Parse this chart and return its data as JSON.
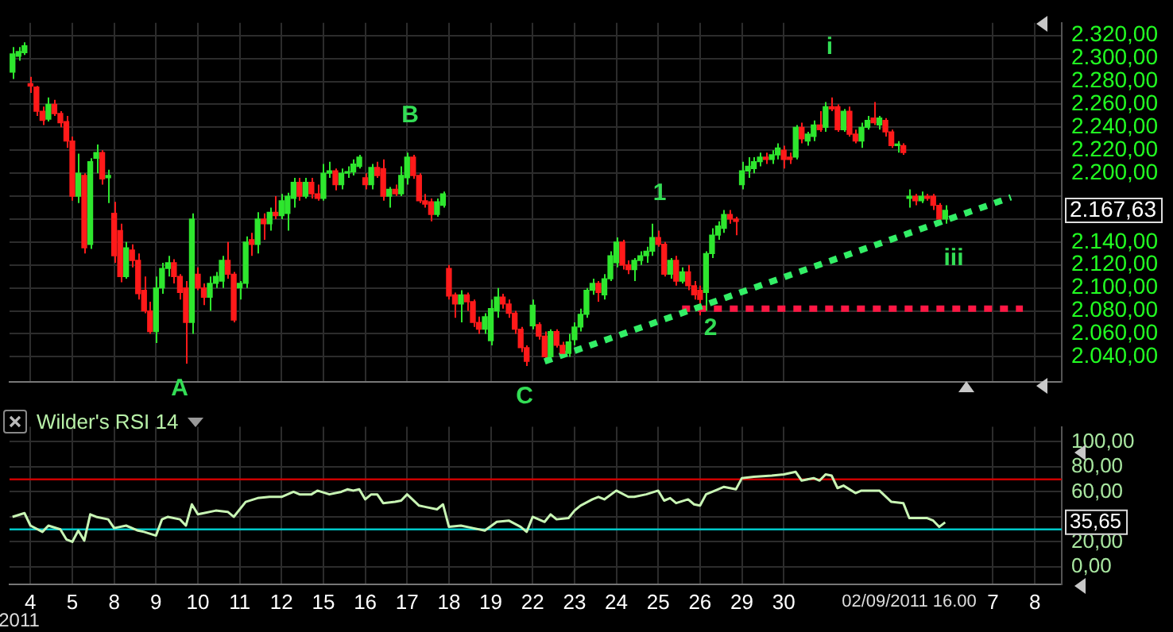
{
  "chart_data": [
    {
      "type": "candlestick",
      "grid": true,
      "tick_labels": "y",
      "categories": [
        null,
        null,
        null,
        "4",
        null,
        null,
        null,
        null,
        null,
        null,
        "5",
        null,
        null,
        null,
        null,
        null,
        null,
        "8",
        null,
        null,
        null,
        null,
        null,
        null,
        "9",
        null,
        null,
        null,
        null,
        null,
        null,
        "10",
        null,
        null,
        null,
        null,
        null,
        null,
        "11",
        null,
        null,
        null,
        null,
        null,
        null,
        "12",
        null,
        null,
        null,
        null,
        null,
        null,
        "15",
        null,
        null,
        null,
        null,
        null,
        null,
        "16",
        null,
        null,
        null,
        null,
        null,
        null,
        "17",
        null,
        null,
        null,
        null,
        null,
        null,
        "18",
        null,
        null,
        null,
        null,
        null,
        null,
        "19",
        null,
        null,
        null,
        null,
        null,
        null,
        "22",
        null,
        null,
        null,
        null,
        null,
        null,
        "23",
        null,
        null,
        null,
        null,
        null,
        null,
        "24",
        null,
        null,
        null,
        null,
        null,
        null,
        "25",
        null,
        null,
        null,
        null,
        null,
        null,
        "26",
        null,
        null,
        null,
        null,
        null,
        null,
        "29",
        null,
        null,
        null,
        null,
        null,
        null,
        "30",
        null,
        null,
        null,
        null,
        null,
        null,
        null,
        null,
        null,
        null,
        null,
        null,
        null,
        null,
        null,
        null,
        null,
        null,
        null,
        null,
        null,
        null,
        null,
        null,
        null,
        null,
        null,
        null,
        null,
        null,
        null,
        null,
        null,
        null,
        "7",
        null,
        null,
        null,
        null,
        null,
        null,
        "8",
        null,
        null,
        null,
        null
      ],
      "ohlc": [
        [
          2288,
          2310,
          2282,
          2304
        ],
        [
          2302,
          2310,
          2298,
          2306
        ],
        [
          2305,
          2314,
          2303,
          2311
        ],
        [
          2278,
          2284,
          2270,
          2276
        ],
        [
          2275,
          2276,
          2250,
          2254
        ],
        [
          2254,
          2258,
          2242,
          2246
        ],
        [
          2247,
          2266,
          2245,
          2260
        ],
        [
          2260,
          2264,
          2250,
          2252
        ],
        [
          2252,
          2254,
          2240,
          2244
        ],
        [
          2245,
          2250,
          2222,
          2228
        ],
        [
          2228,
          2232,
          2176,
          2180
        ],
        [
          2180,
          2217,
          2174,
          2200
        ],
        [
          2198,
          2200,
          2130,
          2135
        ],
        [
          2138,
          2213,
          2134,
          2210
        ],
        [
          2213,
          2225,
          2200,
          2218
        ],
        [
          2218,
          2220,
          2190,
          2195
        ],
        [
          2196,
          2203,
          2174,
          2198
        ],
        [
          2165,
          2175,
          2122,
          2128
        ],
        [
          2150,
          2156,
          2105,
          2110
        ],
        [
          2110,
          2140,
          2108,
          2135
        ],
        [
          2133,
          2138,
          2118,
          2124
        ],
        [
          2124,
          2130,
          2090,
          2095
        ],
        [
          2098,
          2110,
          2078,
          2080
        ],
        [
          2080,
          2088,
          2060,
          2062
        ],
        [
          2062,
          2110,
          2052,
          2100
        ],
        [
          2100,
          2122,
          2095,
          2117
        ],
        [
          2117,
          2128,
          2110,
          2122
        ],
        [
          2122,
          2125,
          2104,
          2110
        ],
        [
          2110,
          2112,
          2090,
          2096
        ],
        [
          2100,
          2106,
          2034,
          2070
        ],
        [
          2070,
          2165,
          2060,
          2160
        ],
        [
          2112,
          2118,
          2098,
          2100
        ],
        [
          2100,
          2104,
          2085,
          2092
        ],
        [
          2092,
          2110,
          2080,
          2104
        ],
        [
          2104,
          2114,
          2100,
          2110
        ],
        [
          2106,
          2128,
          2100,
          2124
        ],
        [
          2124,
          2140,
          2108,
          2112
        ],
        [
          2112,
          2114,
          2070,
          2072
        ],
        [
          2100,
          2106,
          2090,
          2104
        ],
        [
          2104,
          2145,
          2100,
          2140
        ],
        [
          2142,
          2148,
          2128,
          2138
        ],
        [
          2138,
          2166,
          2130,
          2160
        ],
        [
          2160,
          2165,
          2142,
          2156
        ],
        [
          2156,
          2170,
          2150,
          2166
        ],
        [
          2166,
          2180,
          2160,
          2163
        ],
        [
          2163,
          2182,
          2160,
          2176
        ],
        [
          2165,
          2183,
          2150,
          2180
        ],
        [
          2178,
          2196,
          2170,
          2192
        ],
        [
          2192,
          2196,
          2176,
          2180
        ],
        [
          2180,
          2196,
          2178,
          2192
        ],
        [
          2192,
          2196,
          2178,
          2182
        ],
        [
          2182,
          2190,
          2176,
          2178
        ],
        [
          2178,
          2208,
          2176,
          2200
        ],
        [
          2200,
          2210,
          2196,
          2202
        ],
        [
          2202,
          2204,
          2185,
          2190
        ],
        [
          2190,
          2204,
          2186,
          2200
        ],
        [
          2200,
          2206,
          2196,
          2201
        ],
        [
          2201,
          2212,
          2198,
          2208
        ],
        [
          2206,
          2216,
          2204,
          2214
        ],
        [
          2196,
          2200,
          2186,
          2190
        ],
        [
          2190,
          2208,
          2186,
          2205
        ],
        [
          2205,
          2210,
          2196,
          2198
        ],
        [
          2204,
          2212,
          2176,
          2180
        ],
        [
          2180,
          2188,
          2170,
          2186
        ],
        [
          2186,
          2190,
          2180,
          2182
        ],
        [
          2182,
          2206,
          2180,
          2198
        ],
        [
          2196,
          2218,
          2190,
          2214
        ],
        [
          2214,
          2216,
          2195,
          2198
        ],
        [
          2198,
          2200,
          2174,
          2176
        ],
        [
          2176,
          2182,
          2170,
          2173
        ],
        [
          2175,
          2178,
          2158,
          2164
        ],
        [
          2164,
          2178,
          2162,
          2175
        ],
        [
          2172,
          2184,
          2170,
          2182
        ],
        [
          2117,
          2120,
          2090,
          2093
        ],
        [
          2094,
          2096,
          2074,
          2086
        ],
        [
          2086,
          2098,
          2070,
          2094
        ],
        [
          2094,
          2096,
          2080,
          2088
        ],
        [
          2088,
          2090,
          2066,
          2070
        ],
        [
          2070,
          2075,
          2060,
          2064
        ],
        [
          2064,
          2078,
          2060,
          2075
        ],
        [
          2054,
          2090,
          2050,
          2082
        ],
        [
          2080,
          2100,
          2074,
          2092
        ],
        [
          2092,
          2095,
          2082,
          2086
        ],
        [
          2086,
          2090,
          2074,
          2078
        ],
        [
          2078,
          2080,
          2060,
          2064
        ],
        [
          2064,
          2066,
          2044,
          2048
        ],
        [
          2048,
          2050,
          2032,
          2036
        ],
        [
          2067,
          2090,
          2064,
          2085
        ],
        [
          2068,
          2070,
          2055,
          2058
        ],
        [
          2058,
          2062,
          2036,
          2040
        ],
        [
          2040,
          2064,
          2038,
          2062
        ],
        [
          2062,
          2064,
          2048,
          2050
        ],
        [
          2050,
          2053,
          2040,
          2043
        ],
        [
          2043,
          2060,
          2040,
          2053
        ],
        [
          2055,
          2070,
          2050,
          2066
        ],
        [
          2066,
          2082,
          2062,
          2077
        ],
        [
          2077,
          2100,
          2074,
          2098
        ],
        [
          2098,
          2108,
          2094,
          2104
        ],
        [
          2104,
          2106,
          2088,
          2096
        ],
        [
          2094,
          2112,
          2090,
          2108
        ],
        [
          2108,
          2132,
          2106,
          2128
        ],
        [
          2122,
          2144,
          2118,
          2140
        ],
        [
          2140,
          2142,
          2116,
          2120
        ],
        [
          2120,
          2124,
          2112,
          2116
        ],
        [
          2116,
          2126,
          2106,
          2124
        ],
        [
          2124,
          2132,
          2120,
          2128
        ],
        [
          2128,
          2136,
          2122,
          2132
        ],
        [
          2132,
          2156,
          2128,
          2144
        ],
        [
          2144,
          2150,
          2136,
          2138
        ],
        [
          2138,
          2140,
          2110,
          2112
        ],
        [
          2112,
          2126,
          2108,
          2124
        ],
        [
          2124,
          2128,
          2102,
          2106
        ],
        [
          2106,
          2118,
          2104,
          2114
        ],
        [
          2114,
          2120,
          2098,
          2102
        ],
        [
          2102,
          2106,
          2090,
          2094
        ],
        [
          2098,
          2102,
          2076,
          2090
        ],
        [
          2096,
          2132,
          2080,
          2130
        ],
        [
          2130,
          2152,
          2126,
          2146
        ],
        [
          2146,
          2158,
          2142,
          2154
        ],
        [
          2152,
          2168,
          2148,
          2164
        ],
        [
          2164,
          2168,
          2156,
          2160
        ],
        [
          2160,
          2162,
          2146,
          2158
        ],
        [
          2190,
          2210,
          2186,
          2202
        ],
        [
          2202,
          2214,
          2196,
          2206
        ],
        [
          2204,
          2214,
          2200,
          2210
        ],
        [
          2210,
          2218,
          2206,
          2214
        ],
        [
          2214,
          2218,
          2208,
          2212
        ],
        [
          2212,
          2220,
          2208,
          2216
        ],
        [
          2216,
          2226,
          2212,
          2222
        ],
        [
          2220,
          2224,
          2204,
          2212
        ],
        [
          2214,
          2218,
          2208,
          2212
        ],
        [
          2214,
          2242,
          2212,
          2240
        ],
        [
          2240,
          2244,
          2226,
          2230
        ],
        [
          2228,
          2236,
          2224,
          2234
        ],
        [
          2232,
          2246,
          2228,
          2242
        ],
        [
          2242,
          2254,
          2236,
          2238
        ],
        [
          2240,
          2262,
          2236,
          2258
        ],
        [
          2258,
          2266,
          2254,
          2256
        ],
        [
          2258,
          2260,
          2236,
          2238
        ],
        [
          2238,
          2256,
          2236,
          2254
        ],
        [
          2254,
          2258,
          2232,
          2234
        ],
        [
          2234,
          2238,
          2226,
          2228
        ],
        [
          2228,
          2244,
          2222,
          2240
        ],
        [
          2240,
          2250,
          2238,
          2246
        ],
        [
          2248,
          2262,
          2242,
          2244
        ],
        [
          2242,
          2250,
          2238,
          2248
        ],
        [
          2246,
          2248,
          2232,
          2236
        ],
        [
          2236,
          2238,
          2222,
          2224
        ],
        [
          2224,
          2228,
          2218,
          2225
        ],
        [
          2224,
          2226,
          2216,
          2218
        ],
        [
          2178,
          2186,
          2170,
          2180
        ],
        [
          2180,
          2182,
          2172,
          2176
        ],
        [
          2176,
          2184,
          2174,
          2180
        ],
        [
          2180,
          2182,
          2176,
          2178
        ],
        [
          2180,
          2182,
          2168,
          2172
        ],
        [
          2172,
          2174,
          2158,
          2160
        ],
        [
          2160,
          2172,
          2156,
          2167.63
        ],
        null,
        null,
        null,
        null,
        null,
        null,
        null,
        null,
        null,
        null,
        null,
        null,
        null,
        null,
        null,
        null,
        null,
        null,
        null
      ],
      "series": [
        {
          "type": "line",
          "color": "#33ee66",
          "line_style": "dotted",
          "values": [
            null,
            null,
            null,
            null,
            null,
            null,
            null,
            null,
            null,
            null,
            null,
            null,
            null,
            null,
            null,
            null,
            null,
            null,
            null,
            null,
            null,
            null,
            null,
            null,
            null,
            null,
            null,
            null,
            null,
            null,
            null,
            null,
            null,
            null,
            null,
            null,
            null,
            null,
            null,
            null,
            null,
            null,
            null,
            null,
            null,
            null,
            null,
            null,
            null,
            null,
            null,
            null,
            null,
            null,
            null,
            null,
            null,
            null,
            null,
            null,
            null,
            null,
            null,
            null,
            null,
            null,
            null,
            null,
            null,
            null,
            null,
            null,
            null,
            null,
            null,
            null,
            null,
            null,
            null,
            null,
            null,
            null,
            null,
            null,
            null,
            null,
            null,
            null,
            null,
            2036,
            null,
            null,
            null,
            null,
            null,
            null,
            null,
            null,
            null,
            null,
            null,
            null,
            null,
            null,
            null,
            null,
            null,
            null,
            null,
            null,
            null,
            null,
            null,
            null,
            null,
            null,
            null,
            null,
            null,
            null,
            null,
            null,
            null,
            null,
            null,
            null,
            null,
            null,
            null,
            null,
            null,
            null,
            null,
            null,
            null,
            null,
            null,
            null,
            null,
            null,
            null,
            null,
            null,
            null,
            null,
            null,
            null,
            null,
            null,
            null,
            null,
            null,
            null,
            null,
            null,
            null,
            null,
            null,
            null,
            null,
            null,
            null,
            null,
            null,
            null,
            null,
            null,
            2179,
            null,
            null,
            null,
            null,
            null,
            null,
            null,
            null
          ]
        },
        {
          "type": "line",
          "color": "#ff1744",
          "line_style": "dotted",
          "values": [
            null,
            null,
            null,
            null,
            null,
            null,
            null,
            null,
            null,
            null,
            null,
            null,
            null,
            null,
            null,
            null,
            null,
            null,
            null,
            null,
            null,
            null,
            null,
            null,
            null,
            null,
            null,
            null,
            null,
            null,
            null,
            null,
            null,
            null,
            null,
            null,
            null,
            null,
            null,
            null,
            null,
            null,
            null,
            null,
            null,
            null,
            null,
            null,
            null,
            null,
            null,
            null,
            null,
            null,
            null,
            null,
            null,
            null,
            null,
            null,
            null,
            null,
            null,
            null,
            null,
            null,
            null,
            null,
            null,
            null,
            null,
            null,
            null,
            null,
            null,
            null,
            null,
            null,
            null,
            null,
            null,
            null,
            null,
            null,
            null,
            null,
            null,
            null,
            null,
            null,
            null,
            null,
            null,
            null,
            null,
            null,
            null,
            null,
            null,
            null,
            null,
            null,
            null,
            null,
            null,
            null,
            null,
            null,
            null,
            null,
            null,
            null,
            2082,
            null,
            null,
            null,
            null,
            null,
            null,
            null,
            null,
            null,
            null,
            null,
            null,
            null,
            null,
            null,
            null,
            null,
            null,
            null,
            null,
            null,
            null,
            null,
            null,
            null,
            null,
            null,
            null,
            null,
            null,
            null,
            null,
            null,
            null,
            null,
            null,
            null,
            null,
            null,
            null,
            null,
            null,
            null,
            null,
            null,
            null,
            null,
            null,
            null,
            null,
            null,
            null,
            null,
            null,
            null,
            null,
            2082,
            null,
            null,
            null,
            null,
            null,
            null
          ]
        }
      ],
      "ylim": [
        2018,
        2331
      ],
      "yticks": [
        {
          "value": 2040,
          "label": "2.040,00"
        },
        {
          "value": 2060,
          "label": "2.060,00"
        },
        {
          "value": 2080,
          "label": "2.080,00"
        },
        {
          "value": 2100,
          "label": "2.100,00"
        },
        {
          "value": 2120,
          "label": "2.120,00"
        },
        {
          "value": 2140,
          "label": "2.140,00"
        },
        {
          "value": 2160,
          "label": null
        },
        {
          "value": 2180,
          "label": null
        },
        {
          "value": 2200,
          "label": "2.200,00"
        },
        {
          "value": 2220,
          "label": "2.220,00"
        },
        {
          "value": 2240,
          "label": "2.240,00"
        },
        {
          "value": 2260,
          "label": "2.260,00"
        },
        {
          "value": 2280,
          "label": "2.280,00"
        },
        {
          "value": 2300,
          "label": "2.300,00"
        },
        {
          "value": 2320,
          "label": "2.320,00"
        }
      ],
      "annotations": [
        "A",
        "B",
        "C",
        "1",
        "2",
        "i",
        "iii",
        "2.167,63"
      ]
    },
    {
      "type": "line",
      "title": "Wilder's RSI 14",
      "grid": true,
      "categories": [
        null,
        null,
        null,
        "4",
        null,
        null,
        null,
        null,
        null,
        null,
        "5",
        null,
        null,
        null,
        null,
        null,
        null,
        "8",
        null,
        null,
        null,
        null,
        null,
        null,
        "9",
        null,
        null,
        null,
        null,
        null,
        null,
        "10",
        null,
        null,
        null,
        null,
        null,
        null,
        "11",
        null,
        null,
        null,
        null,
        null,
        null,
        "12",
        null,
        null,
        null,
        null,
        null,
        null,
        "15",
        null,
        null,
        null,
        null,
        null,
        null,
        "16",
        null,
        null,
        null,
        null,
        null,
        null,
        "17",
        null,
        null,
        null,
        null,
        null,
        null,
        "18",
        null,
        null,
        null,
        null,
        null,
        null,
        "19",
        null,
        null,
        null,
        null,
        null,
        null,
        "22",
        null,
        null,
        null,
        null,
        null,
        null,
        "23",
        null,
        null,
        null,
        null,
        null,
        null,
        "24",
        null,
        null,
        null,
        null,
        null,
        null,
        "25",
        null,
        null,
        null,
        null,
        null,
        null,
        "26",
        null,
        null,
        null,
        null,
        null,
        null,
        "29",
        null,
        null,
        null,
        null,
        null,
        null,
        "30",
        null,
        null,
        null,
        null,
        null,
        null,
        null,
        null,
        null,
        null,
        null,
        null,
        null,
        null,
        null,
        null,
        null,
        null,
        null,
        null,
        null,
        null,
        null,
        null,
        null,
        null,
        null,
        null,
        null,
        null,
        null,
        null,
        null,
        null,
        "7",
        null,
        null,
        null,
        null,
        null,
        null,
        "8",
        null,
        null,
        null,
        null
      ],
      "series": [
        {
          "color": "#c8f5b4",
          "values": [
            40,
            null,
            43,
            33,
            null,
            28,
            33,
            null,
            30,
            22,
            20,
            29,
            21,
            42,
            40,
            null,
            38,
            31,
            null,
            33,
            null,
            29,
            28,
            null,
            25,
            38,
            40,
            null,
            38,
            33,
            50,
            42,
            43,
            null,
            45,
            null,
            44,
            40,
            null,
            52,
            null,
            55,
            null,
            56,
            null,
            56,
            null,
            60,
            58,
            null,
            58,
            61,
            null,
            58,
            null,
            60,
            62,
            61,
            62,
            54,
            58,
            58,
            51,
            null,
            52,
            53,
            58,
            null,
            49,
            48,
            null,
            46,
            50,
            32,
            null,
            33,
            null,
            31,
            null,
            29,
            null,
            36,
            null,
            37,
            null,
            32,
            28,
            40,
            null,
            36,
            42,
            38,
            null,
            39,
            45,
            49,
            null,
            54,
            56,
            54,
            null,
            61,
            null,
            56,
            56,
            null,
            58,
            null,
            61,
            53,
            55,
            51,
            null,
            54,
            50,
            49,
            58,
            null,
            62,
            64,
            null,
            62,
            71,
            null,
            72,
            null,
            null,
            73,
            null,
            74,
            null,
            76,
            69,
            null,
            71,
            69,
            74,
            73,
            63,
            65,
            null,
            59,
            61,
            null,
            61,
            61,
            null,
            52,
            null,
            51,
            39,
            null,
            null,
            39,
            37,
            32,
            35.65,
            null,
            null,
            null,
            null,
            null,
            null,
            null,
            null,
            null,
            null,
            null,
            null,
            null,
            null,
            null,
            null,
            null,
            null,
            null
          ]
        }
      ],
      "ylim": [
        -14,
        112
      ],
      "yticks": [
        {
          "value": 0,
          "label": "0,00"
        },
        {
          "value": 20,
          "label": "20,00"
        },
        {
          "value": 40,
          "label": null
        },
        {
          "value": 60,
          "label": "60,00"
        },
        {
          "value": 80,
          "label": "80,00"
        },
        {
          "value": 100,
          "label": "100,00"
        }
      ],
      "ref_lines": [
        {
          "axis": "y",
          "value": 70,
          "color": "#cc0000"
        },
        {
          "axis": "y",
          "value": 30,
          "color": "#00c8c8"
        }
      ],
      "annotations": [
        "2011",
        "02/09/2011 16.00",
        "35,65"
      ]
    }
  ]
}
